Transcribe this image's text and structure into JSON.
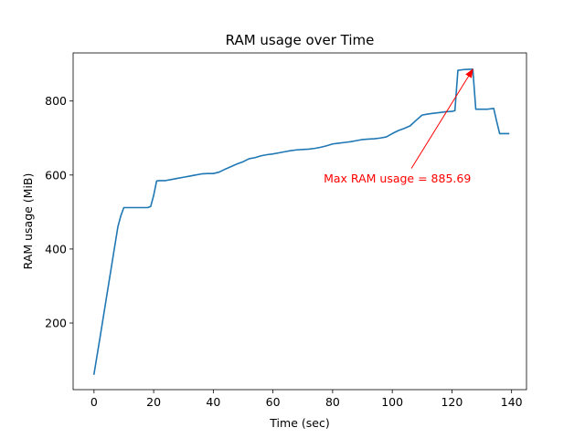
{
  "chart_data": {
    "type": "line",
    "title": "RAM usage over Time",
    "xlabel": "Time (sec)",
    "ylabel": "RAM usage (MiB)",
    "xlim": [
      -7,
      145
    ],
    "ylim": [
      20,
      930
    ],
    "xticks": [
      0,
      20,
      40,
      60,
      80,
      100,
      120,
      140
    ],
    "yticks": [
      200,
      400,
      600,
      800
    ],
    "grid": false,
    "series": [
      {
        "color": "#1f77b4",
        "x": [
          0,
          2,
          4,
          6,
          8,
          9,
          10,
          12,
          14,
          16,
          18,
          19,
          20,
          21,
          22,
          23,
          24,
          26,
          28,
          30,
          32,
          34,
          36,
          38,
          40,
          42,
          44,
          46,
          48,
          50,
          52,
          54,
          56,
          58,
          60,
          62,
          64,
          66,
          68,
          70,
          72,
          74,
          76,
          78,
          80,
          82,
          84,
          86,
          88,
          90,
          92,
          94,
          96,
          98,
          100,
          102,
          104,
          106,
          108,
          110,
          112,
          114,
          116,
          118,
          120,
          121,
          122,
          124,
          126,
          127,
          128,
          130,
          132,
          134,
          135,
          136,
          138,
          139
        ],
        "y": [
          62,
          160,
          260,
          360,
          460,
          490,
          512,
          512,
          512,
          512,
          512,
          515,
          545,
          584,
          585,
          585,
          585,
          588,
          591,
          594,
          597,
          600,
          603,
          604,
          604,
          608,
          616,
          623,
          630,
          636,
          644,
          647,
          652,
          655,
          657,
          660,
          663,
          666,
          668,
          669,
          670,
          672,
          675,
          679,
          684,
          686,
          688,
          690,
          693,
          696,
          697,
          698,
          700,
          703,
          712,
          720,
          726,
          733,
          748,
          762,
          765,
          767,
          769,
          771,
          772,
          774,
          883,
          885,
          885.69,
          885.69,
          778,
          778,
          778,
          780,
          745,
          712,
          712,
          712
        ]
      }
    ],
    "annotation": {
      "text": "Max RAM usage = 885.69",
      "xy": [
        127,
        885.69
      ],
      "xytext": [
        77,
        591
      ],
      "color": "#ff0000"
    }
  }
}
